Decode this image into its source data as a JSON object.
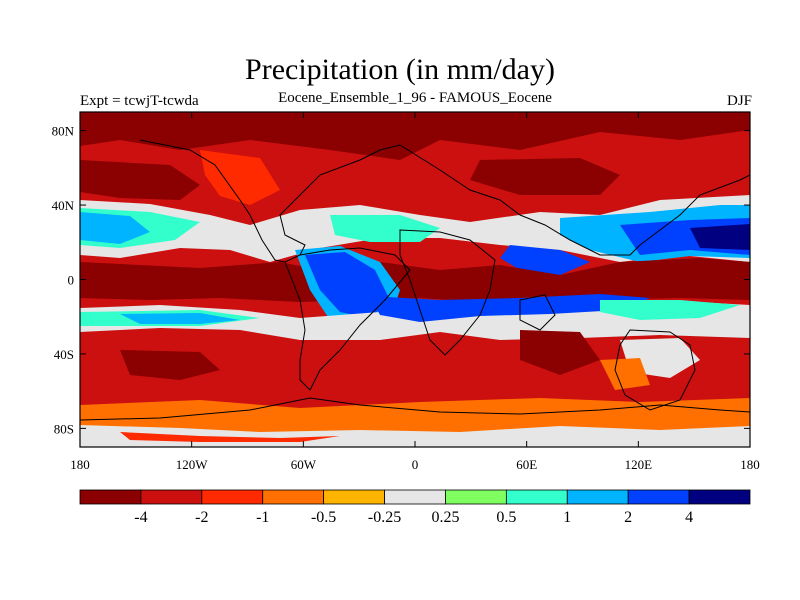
{
  "header": {
    "title": "Precipitation (in mm/day)",
    "left_label": "Expt = tcwjT-tcwda",
    "center_label": "Eocene_Ensemble_1_96 - FAMOUS_Eocene",
    "right_label": "DJF"
  },
  "map": {
    "lon_range": [
      -180,
      180
    ],
    "lat_range": [
      -90,
      90
    ],
    "y_tick_labels": [
      {
        "lat": 80,
        "label": "80N"
      },
      {
        "lat": 40,
        "label": "40N"
      },
      {
        "lat": 0,
        "label": "0"
      },
      {
        "lat": -40,
        "label": "40S"
      },
      {
        "lat": -80,
        "label": "80S"
      }
    ],
    "x_tick_labels": [
      {
        "lon": -180,
        "label": "180"
      },
      {
        "lon": -120,
        "label": "120W"
      },
      {
        "lon": -60,
        "label": "60W"
      },
      {
        "lon": 0,
        "label": "0"
      },
      {
        "lon": 60,
        "label": "60E"
      },
      {
        "lon": 120,
        "label": "120E"
      },
      {
        "lon": 180,
        "label": "180"
      }
    ]
  },
  "colorbar": {
    "colors": [
      "#8b0000",
      "#cc1010",
      "#ff2a00",
      "#ff7000",
      "#ffb400",
      "#e6e6e6",
      "#80ff60",
      "#33ffcc",
      "#00b4ff",
      "#0040ff",
      "#000080"
    ],
    "labels": [
      "-4",
      "-2",
      "-1",
      "-0.5",
      "-0.25",
      "0.25",
      "0.5",
      "1",
      "2",
      "4"
    ]
  },
  "chart_data": {
    "type": "heatmap",
    "title": "Precipitation (in mm/day)",
    "subtitle": "Eocene_Ensemble_1_96 - FAMOUS_Eocene",
    "season": "DJF",
    "contour_levels": [
      -4,
      -2,
      -1,
      -0.5,
      -0.25,
      0.25,
      0.5,
      1,
      2,
      4
    ],
    "features": [
      {
        "lon": [
          -180,
          180
        ],
        "lat": [
          30,
          40
        ],
        "level": "above 0.25"
      },
      {
        "lon": [
          -50,
          -10
        ],
        "lat": [
          -30,
          10
        ],
        "level": "above 2"
      },
      {
        "lon": [
          120,
          180
        ],
        "lat": [
          12,
          28
        ],
        "level": "above 4"
      },
      {
        "lon": [
          -180,
          180
        ],
        "lat": [
          -28,
          -20
        ],
        "level": "above 0.25"
      },
      {
        "lon": [
          -180,
          180
        ],
        "lat": [
          0,
          10
        ],
        "level": "below -4"
      }
    ]
  }
}
